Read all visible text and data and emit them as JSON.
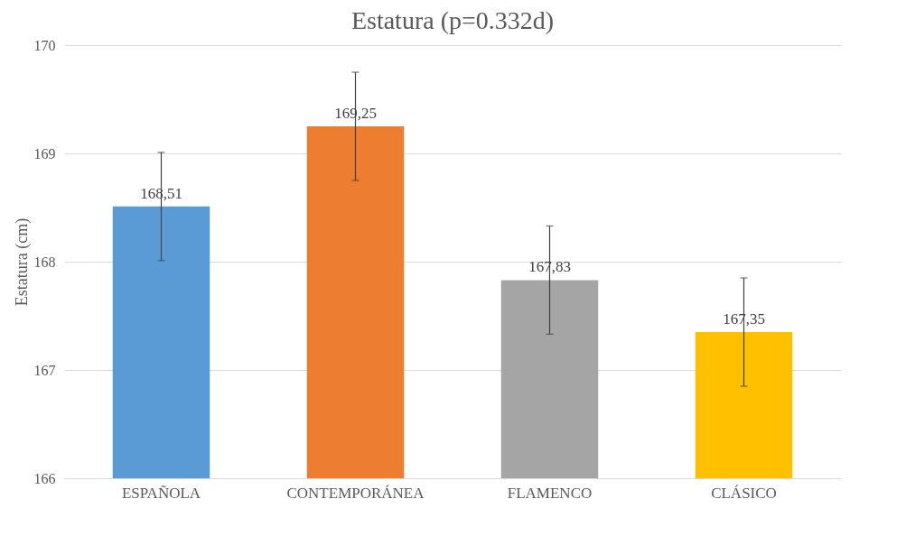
{
  "chart_data": {
    "type": "bar",
    "title": "Estatura (p=0.332d)",
    "ylabel": "Estatura (cm)",
    "categories": [
      "ESPAÑOLA",
      "CONTEMPORÁNEA",
      "FLAMENCO",
      "CLÁSICO"
    ],
    "values": [
      168.51,
      169.25,
      167.83,
      167.35
    ],
    "colors": [
      "#5b9bd5",
      "#ed7d31",
      "#a5a5a5",
      "#ffc000"
    ],
    "errors": [
      0.5,
      0.5,
      0.5,
      0.5
    ],
    "value_labels": [
      "168,51",
      "169,25",
      "167,83",
      "167,35"
    ],
    "ylim": [
      166,
      170
    ],
    "yticks": [
      166,
      167,
      168,
      169,
      170
    ],
    "grid": "y"
  }
}
